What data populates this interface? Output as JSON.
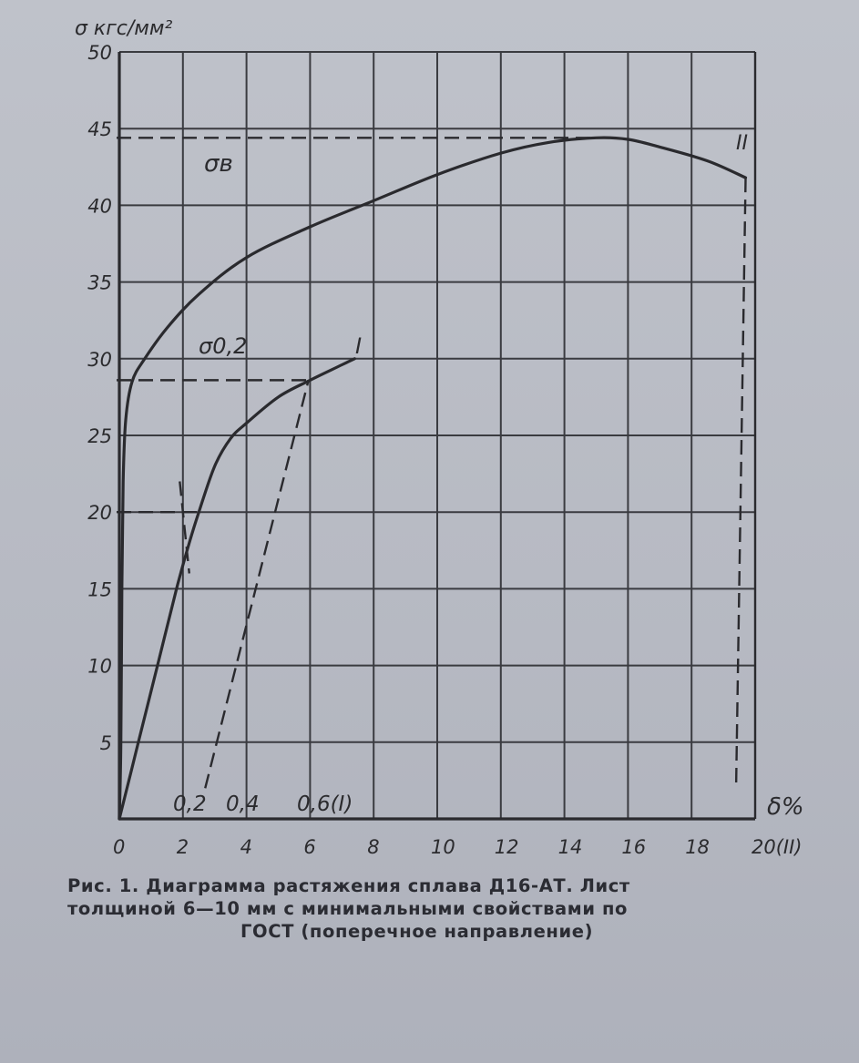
{
  "chart_data": {
    "type": "line",
    "ylabel": "σ кгс/мм²",
    "xlabel": "δ%",
    "xlim": [
      0,
      20
    ],
    "ylim": [
      0,
      50
    ],
    "grid": true,
    "x_ticks": [
      "0",
      "2",
      "4",
      "6",
      "8",
      "10",
      "12",
      "14",
      "16",
      "18",
      "20(II)"
    ],
    "y_ticks": [
      "5",
      "10",
      "15",
      "20",
      "25",
      "30",
      "35",
      "40",
      "45",
      "50"
    ],
    "series": [
      {
        "name": "I",
        "points": [
          [
            0,
            0
          ],
          [
            0.6,
            5
          ],
          [
            1.2,
            10
          ],
          [
            1.8,
            15
          ],
          [
            2.2,
            18
          ],
          [
            2.5,
            20
          ],
          [
            3,
            23
          ],
          [
            3.5,
            24.8
          ],
          [
            4,
            25.8
          ],
          [
            5,
            27.5
          ],
          [
            6,
            28.6
          ],
          [
            7,
            29.6
          ],
          [
            7.4,
            30
          ]
        ]
      },
      {
        "name": "II",
        "points": [
          [
            0,
            0
          ],
          [
            0.05,
            5
          ],
          [
            0.08,
            15
          ],
          [
            0.12,
            22
          ],
          [
            0.2,
            26
          ],
          [
            0.4,
            28.5
          ],
          [
            0.8,
            30
          ],
          [
            1.5,
            32
          ],
          [
            2.5,
            34.2
          ],
          [
            4,
            36.6
          ],
          [
            6,
            38.6
          ],
          [
            8,
            40.3
          ],
          [
            10,
            42
          ],
          [
            12,
            43.4
          ],
          [
            13.5,
            44.1
          ],
          [
            15,
            44.4
          ],
          [
            16,
            44.3
          ],
          [
            17,
            43.8
          ],
          [
            18.5,
            42.9
          ],
          [
            19.7,
            41.8
          ]
        ]
      }
    ],
    "reference_lines": {
      "sigma_b": {
        "label": "σв",
        "y": 44.4
      },
      "sigma_02": {
        "label": "σ0,2",
        "y": 28.6
      },
      "sigma_20": {
        "y": 20
      },
      "offset_labels": [
        "0,2",
        "0,4",
        "0,6(I)"
      ]
    }
  },
  "caption": {
    "line1": "Рис. 1. Диаграмма растяжения сплава Д16-АТ. Лист",
    "line2": "толщиной 6—10 мм с минимальными свойствами по",
    "line3": "ГОСТ (поперечное направление)"
  }
}
